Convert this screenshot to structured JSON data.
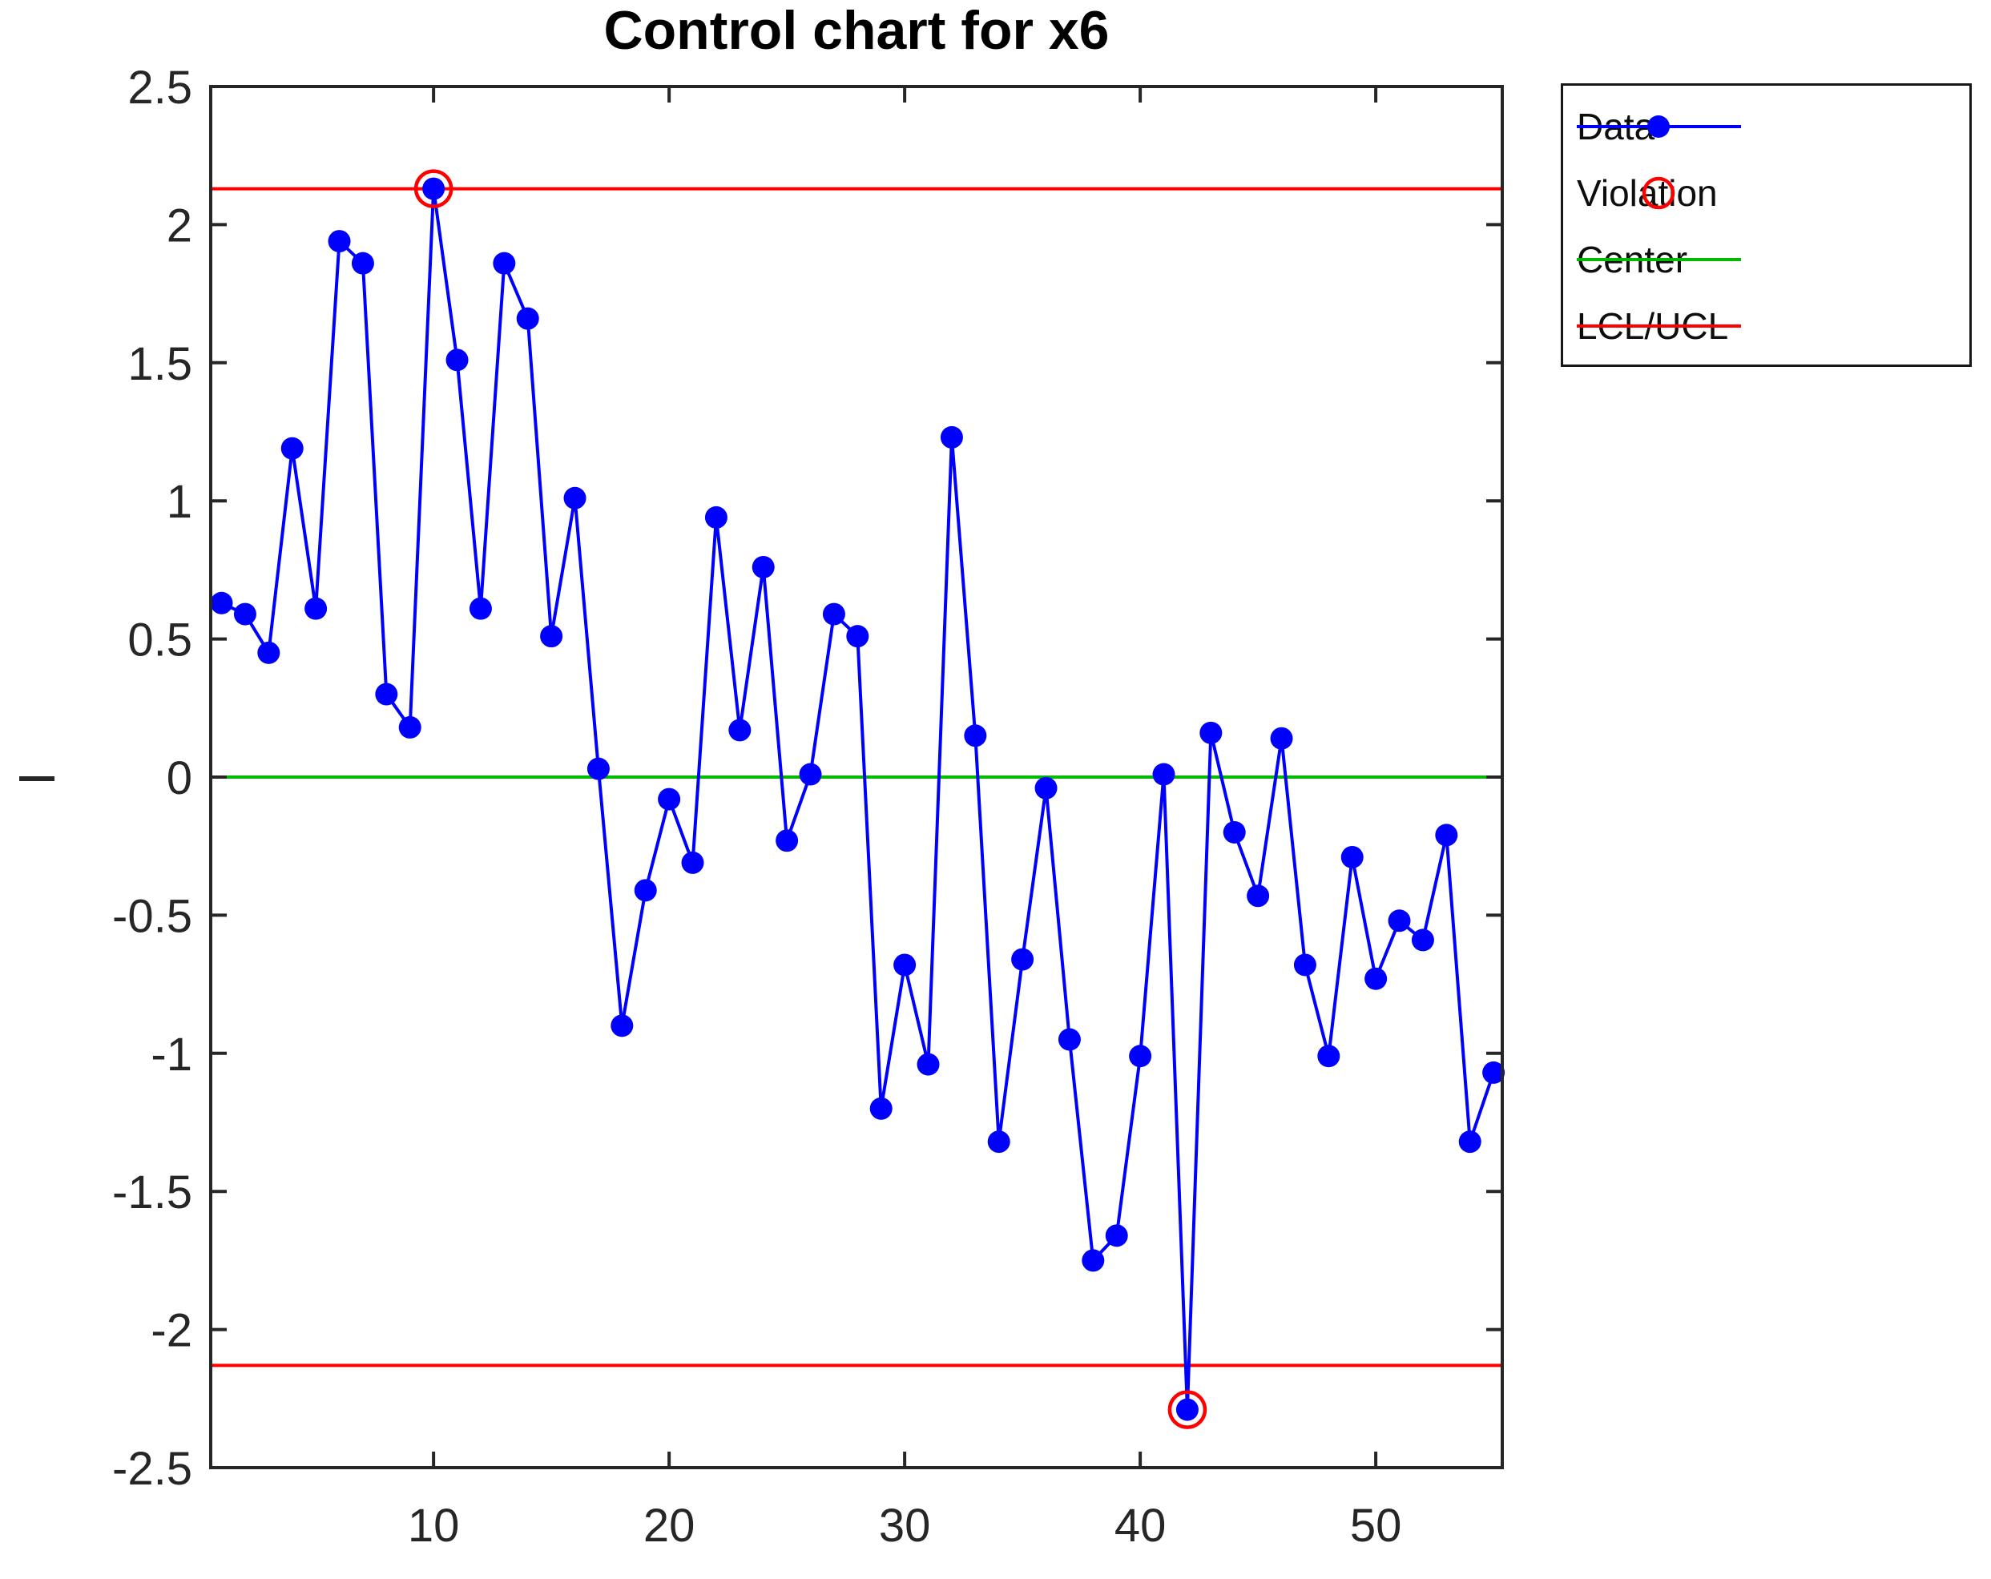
{
  "title": "Control chart for x6",
  "legend": {
    "entries": [
      {
        "label": "Data"
      },
      {
        "label": "Violation"
      },
      {
        "label": "Center"
      },
      {
        "label": "LCL/UCL"
      }
    ]
  },
  "colors": {
    "data": "#0000FF",
    "violation": "#FF0000",
    "center": "#00BA00",
    "limits": "#FF0000",
    "axis": "#262626",
    "title": "#000000",
    "background": "#FFFFFF"
  },
  "chart_data": {
    "type": "line",
    "title": "Control chart for x6",
    "xlabel": "",
    "ylabel": "I",
    "x": [
      1,
      2,
      3,
      4,
      5,
      6,
      7,
      8,
      9,
      10,
      11,
      12,
      13,
      14,
      15,
      16,
      17,
      18,
      19,
      20,
      21,
      22,
      23,
      24,
      25,
      26,
      27,
      28,
      29,
      30,
      31,
      32,
      33,
      34,
      35,
      36,
      37,
      38,
      39,
      40,
      41,
      42,
      43,
      44,
      45,
      46,
      47,
      48,
      49,
      50,
      51,
      52,
      53,
      54,
      55
    ],
    "series": [
      {
        "name": "Data",
        "values": [
          0.63,
          0.59,
          0.45,
          1.19,
          0.61,
          1.94,
          1.86,
          0.3,
          0.18,
          2.13,
          1.51,
          0.61,
          1.86,
          1.66,
          0.51,
          1.01,
          0.03,
          -0.9,
          -0.41,
          -0.08,
          -0.31,
          0.94,
          0.17,
          0.76,
          -0.23,
          0.01,
          0.59,
          0.51,
          -1.2,
          -0.68,
          -1.04,
          1.23,
          0.15,
          -1.32,
          -0.66,
          -0.04,
          -0.95,
          -1.75,
          -1.66,
          -1.01,
          0.01,
          -2.29,
          0.16,
          -0.2,
          -0.43,
          0.14,
          -0.68,
          -1.01,
          -0.29,
          -0.73,
          -0.52,
          -0.59,
          -0.21,
          -1.32,
          -1.07
        ]
      }
    ],
    "center": 0,
    "ucl": 2.13,
    "lcl": -2.13,
    "violations": [
      {
        "x": 10,
        "y": 2.13
      },
      {
        "x": 42,
        "y": -2.29
      }
    ],
    "xlim": [
      0.54,
      55.37
    ],
    "ylim": [
      -2.5,
      2.5
    ],
    "xticks": [
      10,
      20,
      30,
      40,
      50
    ],
    "xticklabels": [
      "10",
      "20",
      "30",
      "40",
      "50"
    ],
    "yticks": [
      -2.5,
      -2,
      -1.5,
      -1,
      -0.5,
      0,
      0.5,
      1,
      1.5,
      2,
      2.5
    ],
    "yticklabels": [
      "-2.5",
      "-2",
      "-1.5",
      "-1",
      "-0.5",
      "0",
      "0.5",
      "1",
      "1.5",
      "2",
      "2.5"
    ],
    "grid": false,
    "legend_position": "outside-top-right"
  }
}
